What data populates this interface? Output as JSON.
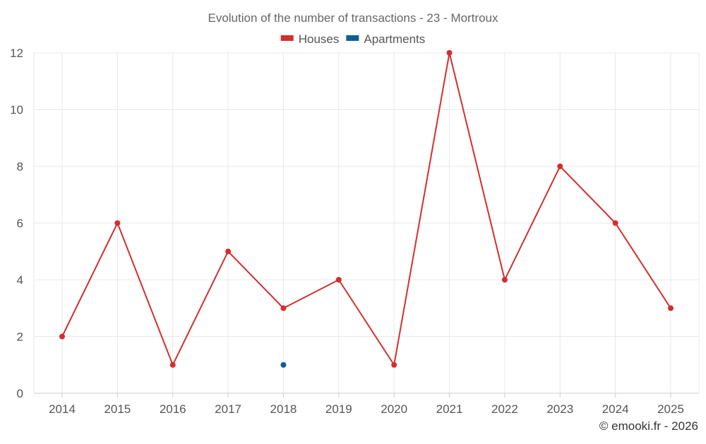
{
  "chart_data": {
    "type": "line",
    "title": "Evolution of the number of transactions - 23 - Mortroux",
    "categories": [
      "2014",
      "2015",
      "2016",
      "2017",
      "2018",
      "2019",
      "2020",
      "2021",
      "2022",
      "2023",
      "2024",
      "2025"
    ],
    "series": [
      {
        "name": "Houses",
        "color": "#d32f2f",
        "values": [
          2,
          6,
          1,
          5,
          3,
          4,
          1,
          12,
          4,
          8,
          6,
          3
        ]
      },
      {
        "name": "Apartments",
        "color": "#0f5f96",
        "values": [
          null,
          null,
          null,
          null,
          1,
          null,
          null,
          null,
          null,
          null,
          null,
          null
        ]
      }
    ],
    "ylim": [
      0,
      12
    ],
    "yticks": [
      0,
      2,
      4,
      6,
      8,
      10,
      12
    ],
    "grid": true,
    "legend_position": "top-center"
  },
  "credit": "© emooki.fr - 2026"
}
